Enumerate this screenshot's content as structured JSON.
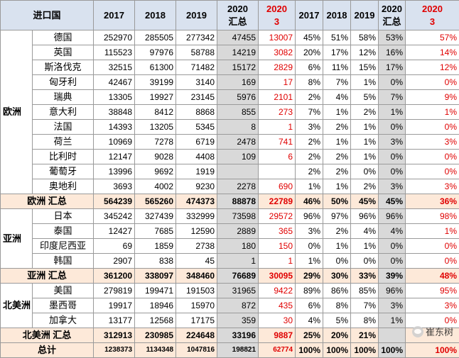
{
  "header": {
    "country": "进口国",
    "y2017": "2017",
    "y2018": "2018",
    "y2019": "2019",
    "sum2020_line1": "2020",
    "sum2020_line2": "汇总",
    "m2020_line1": "2020",
    "m2020_line2": "3",
    "p2017": "2017",
    "p2018": "2018",
    "p2019": "2019",
    "psum_line1": "2020",
    "psum_line2": "汇总",
    "pm_line1": "2020",
    "pm_line2": "3"
  },
  "regions": {
    "europe": "欧洲",
    "asia": "亚洲",
    "north_america": "北美洲"
  },
  "europe_rows": [
    {
      "country": "德国",
      "y2017": "252970",
      "y2018": "285505",
      "y2019": "277342",
      "sum2020": "47455",
      "m2020": "13007",
      "p2017": "45%",
      "p2018": "51%",
      "p2019": "58%",
      "psum": "53%",
      "pm": "57%"
    },
    {
      "country": "英国",
      "y2017": "115523",
      "y2018": "97976",
      "y2019": "58788",
      "sum2020": "14219",
      "m2020": "3082",
      "p2017": "20%",
      "p2018": "17%",
      "p2019": "12%",
      "psum": "16%",
      "pm": "14%"
    },
    {
      "country": "斯洛伐克",
      "y2017": "32515",
      "y2018": "61300",
      "y2019": "71482",
      "sum2020": "15172",
      "m2020": "2829",
      "p2017": "6%",
      "p2018": "11%",
      "p2019": "15%",
      "psum": "17%",
      "pm": "12%"
    },
    {
      "country": "匈牙利",
      "y2017": "42467",
      "y2018": "39199",
      "y2019": "3140",
      "sum2020": "169",
      "m2020": "17",
      "p2017": "8%",
      "p2018": "7%",
      "p2019": "1%",
      "psum": "0%",
      "pm": "0%"
    },
    {
      "country": "瑞典",
      "y2017": "13305",
      "y2018": "19927",
      "y2019": "23145",
      "sum2020": "5976",
      "m2020": "2101",
      "p2017": "2%",
      "p2018": "4%",
      "p2019": "5%",
      "psum": "7%",
      "pm": "9%"
    },
    {
      "country": "意大利",
      "y2017": "38848",
      "y2018": "8412",
      "y2019": "8868",
      "sum2020": "855",
      "m2020": "273",
      "p2017": "7%",
      "p2018": "1%",
      "p2019": "2%",
      "psum": "1%",
      "pm": "1%"
    },
    {
      "country": "法国",
      "y2017": "14393",
      "y2018": "13205",
      "y2019": "5345",
      "sum2020": "8",
      "m2020": "1",
      "p2017": "3%",
      "p2018": "2%",
      "p2019": "1%",
      "psum": "0%",
      "pm": "0%"
    },
    {
      "country": "荷兰",
      "y2017": "10969",
      "y2018": "7278",
      "y2019": "6719",
      "sum2020": "2478",
      "m2020": "741",
      "p2017": "2%",
      "p2018": "1%",
      "p2019": "1%",
      "psum": "3%",
      "pm": "3%"
    },
    {
      "country": "比利时",
      "y2017": "12147",
      "y2018": "9028",
      "y2019": "4408",
      "sum2020": "109",
      "m2020": "6",
      "p2017": "2%",
      "p2018": "2%",
      "p2019": "1%",
      "psum": "0%",
      "pm": "0%"
    },
    {
      "country": "葡萄牙",
      "y2017": "13996",
      "y2018": "9692",
      "y2019": "1919",
      "sum2020": "",
      "m2020": "",
      "p2017": "2%",
      "p2018": "2%",
      "p2019": "0%",
      "psum": "0%",
      "pm": "0%"
    },
    {
      "country": "奥地利",
      "y2017": "3693",
      "y2018": "4002",
      "y2019": "9230",
      "sum2020": "2278",
      "m2020": "690",
      "p2017": "1%",
      "p2018": "1%",
      "p2019": "2%",
      "psum": "3%",
      "pm": "3%"
    }
  ],
  "europe_total": {
    "label": "欧洲 汇总",
    "y2017": "564239",
    "y2018": "565260",
    "y2019": "474373",
    "sum2020": "88878",
    "m2020": "22789",
    "p2017": "46%",
    "p2018": "50%",
    "p2019": "45%",
    "psum": "45%",
    "pm": "36%"
  },
  "asia_rows": [
    {
      "country": "日本",
      "y2017": "345242",
      "y2018": "327439",
      "y2019": "332999",
      "sum2020": "73598",
      "m2020": "29572",
      "p2017": "96%",
      "p2018": "97%",
      "p2019": "96%",
      "psum": "96%",
      "pm": "98%"
    },
    {
      "country": "泰国",
      "y2017": "12427",
      "y2018": "7685",
      "y2019": "12590",
      "sum2020": "2889",
      "m2020": "365",
      "p2017": "3%",
      "p2018": "2%",
      "p2019": "4%",
      "psum": "4%",
      "pm": "1%"
    },
    {
      "country": "印度尼西亚",
      "y2017": "69",
      "y2018": "1859",
      "y2019": "2738",
      "sum2020": "180",
      "m2020": "150",
      "p2017": "0%",
      "p2018": "1%",
      "p2019": "1%",
      "psum": "0%",
      "pm": "0%"
    },
    {
      "country": "韩国",
      "y2017": "2907",
      "y2018": "838",
      "y2019": "45",
      "sum2020": "1",
      "m2020": "1",
      "p2017": "1%",
      "p2018": "0%",
      "p2019": "0%",
      "psum": "0%",
      "pm": "0%"
    }
  ],
  "asia_total": {
    "label": "亚洲 汇总",
    "y2017": "361200",
    "y2018": "338097",
    "y2019": "348460",
    "sum2020": "76689",
    "m2020": "30095",
    "p2017": "29%",
    "p2018": "30%",
    "p2019": "33%",
    "psum": "39%",
    "pm": "48%"
  },
  "na_rows": [
    {
      "country": "美国",
      "y2017": "279819",
      "y2018": "199471",
      "y2019": "191503",
      "sum2020": "31965",
      "m2020": "9422",
      "p2017": "89%",
      "p2018": "86%",
      "p2019": "85%",
      "psum": "96%",
      "pm": "95%"
    },
    {
      "country": "墨西哥",
      "y2017": "19917",
      "y2018": "18946",
      "y2019": "15970",
      "sum2020": "872",
      "m2020": "435",
      "p2017": "6%",
      "p2018": "8%",
      "p2019": "7%",
      "psum": "3%",
      "pm": "3%"
    },
    {
      "country": "加拿大",
      "y2017": "13177",
      "y2018": "12568",
      "y2019": "17175",
      "sum2020": "359",
      "m2020": "30",
      "p2017": "4%",
      "p2018": "5%",
      "p2019": "8%",
      "psum": "1%",
      "pm": "0%"
    }
  ],
  "na_total": {
    "label": "北美洲 汇总",
    "y2017": "312913",
    "y2018": "230985",
    "y2019": "224648",
    "sum2020": "33196",
    "m2020": "9887",
    "p2017": "25%",
    "p2018": "20%",
    "p2019": "21%",
    "psum": "",
    "pm": ""
  },
  "grand_total": {
    "label": "总计",
    "y2017": "1238373",
    "y2018": "1134348",
    "y2019": "1047816",
    "sum2020": "198821",
    "m2020": "62774",
    "p2017": "100%",
    "p2018": "100%",
    "p2019": "100%",
    "psum": "100%",
    "pm": "100%"
  },
  "watermark": {
    "text": "崔东树"
  }
}
